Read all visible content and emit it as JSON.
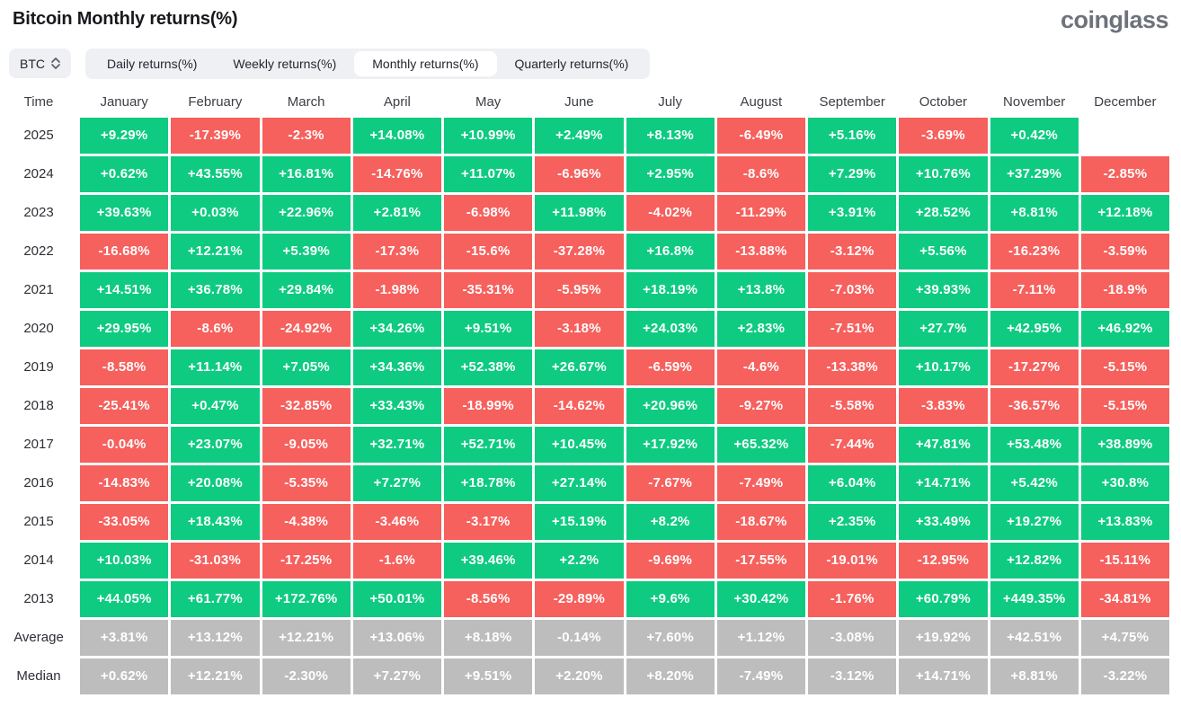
{
  "header": {
    "title": "Bitcoin Monthly returns(%)",
    "logo": "coinglass"
  },
  "controls": {
    "symbol": "BTC",
    "tabs": [
      {
        "label": "Daily returns(%)",
        "selected": false
      },
      {
        "label": "Weekly returns(%)",
        "selected": false
      },
      {
        "label": "Monthly returns(%)",
        "selected": true
      },
      {
        "label": "Quarterly returns(%)",
        "selected": false
      }
    ]
  },
  "colors": {
    "positive": "#0ecb81",
    "negative": "#f6605d",
    "summary": "#bdbdbd"
  },
  "table": {
    "time_header": "Time",
    "months": [
      "January",
      "February",
      "March",
      "April",
      "May",
      "June",
      "July",
      "August",
      "September",
      "October",
      "November",
      "December"
    ],
    "rows": [
      {
        "label": "2025",
        "type": "year",
        "values": [
          "+9.29%",
          "-17.39%",
          "-2.3%",
          "+14.08%",
          "+10.99%",
          "+2.49%",
          "+8.13%",
          "-6.49%",
          "+5.16%",
          "-3.69%",
          "+0.42%",
          null
        ]
      },
      {
        "label": "2024",
        "type": "year",
        "values": [
          "+0.62%",
          "+43.55%",
          "+16.81%",
          "-14.76%",
          "+11.07%",
          "-6.96%",
          "+2.95%",
          "-8.6%",
          "+7.29%",
          "+10.76%",
          "+37.29%",
          "-2.85%"
        ]
      },
      {
        "label": "2023",
        "type": "year",
        "values": [
          "+39.63%",
          "+0.03%",
          "+22.96%",
          "+2.81%",
          "-6.98%",
          "+11.98%",
          "-4.02%",
          "-11.29%",
          "+3.91%",
          "+28.52%",
          "+8.81%",
          "+12.18%"
        ]
      },
      {
        "label": "2022",
        "type": "year",
        "values": [
          "-16.68%",
          "+12.21%",
          "+5.39%",
          "-17.3%",
          "-15.6%",
          "-37.28%",
          "+16.8%",
          "-13.88%",
          "-3.12%",
          "+5.56%",
          "-16.23%",
          "-3.59%"
        ]
      },
      {
        "label": "2021",
        "type": "year",
        "values": [
          "+14.51%",
          "+36.78%",
          "+29.84%",
          "-1.98%",
          "-35.31%",
          "-5.95%",
          "+18.19%",
          "+13.8%",
          "-7.03%",
          "+39.93%",
          "-7.11%",
          "-18.9%"
        ]
      },
      {
        "label": "2020",
        "type": "year",
        "values": [
          "+29.95%",
          "-8.6%",
          "-24.92%",
          "+34.26%",
          "+9.51%",
          "-3.18%",
          "+24.03%",
          "+2.83%",
          "-7.51%",
          "+27.7%",
          "+42.95%",
          "+46.92%"
        ]
      },
      {
        "label": "2019",
        "type": "year",
        "values": [
          "-8.58%",
          "+11.14%",
          "+7.05%",
          "+34.36%",
          "+52.38%",
          "+26.67%",
          "-6.59%",
          "-4.6%",
          "-13.38%",
          "+10.17%",
          "-17.27%",
          "-5.15%"
        ]
      },
      {
        "label": "2018",
        "type": "year",
        "values": [
          "-25.41%",
          "+0.47%",
          "-32.85%",
          "+33.43%",
          "-18.99%",
          "-14.62%",
          "+20.96%",
          "-9.27%",
          "-5.58%",
          "-3.83%",
          "-36.57%",
          "-5.15%"
        ]
      },
      {
        "label": "2017",
        "type": "year",
        "values": [
          "-0.04%",
          "+23.07%",
          "-9.05%",
          "+32.71%",
          "+52.71%",
          "+10.45%",
          "+17.92%",
          "+65.32%",
          "-7.44%",
          "+47.81%",
          "+53.48%",
          "+38.89%"
        ]
      },
      {
        "label": "2016",
        "type": "year",
        "values": [
          "-14.83%",
          "+20.08%",
          "-5.35%",
          "+7.27%",
          "+18.78%",
          "+27.14%",
          "-7.67%",
          "-7.49%",
          "+6.04%",
          "+14.71%",
          "+5.42%",
          "+30.8%"
        ]
      },
      {
        "label": "2015",
        "type": "year",
        "values": [
          "-33.05%",
          "+18.43%",
          "-4.38%",
          "-3.46%",
          "-3.17%",
          "+15.19%",
          "+8.2%",
          "-18.67%",
          "+2.35%",
          "+33.49%",
          "+19.27%",
          "+13.83%"
        ]
      },
      {
        "label": "2014",
        "type": "year",
        "values": [
          "+10.03%",
          "-31.03%",
          "-17.25%",
          "-1.6%",
          "+39.46%",
          "+2.2%",
          "-9.69%",
          "-17.55%",
          "-19.01%",
          "-12.95%",
          "+12.82%",
          "-15.11%"
        ]
      },
      {
        "label": "2013",
        "type": "year",
        "values": [
          "+44.05%",
          "+61.77%",
          "+172.76%",
          "+50.01%",
          "-8.56%",
          "-29.89%",
          "+9.6%",
          "+30.42%",
          "-1.76%",
          "+60.79%",
          "+449.35%",
          "-34.81%"
        ]
      },
      {
        "label": "Average",
        "type": "summary",
        "values": [
          "+3.81%",
          "+13.12%",
          "+12.21%",
          "+13.06%",
          "+8.18%",
          "-0.14%",
          "+7.60%",
          "+1.12%",
          "-3.08%",
          "+19.92%",
          "+42.51%",
          "+4.75%"
        ]
      },
      {
        "label": "Median",
        "type": "summary",
        "values": [
          "+0.62%",
          "+12.21%",
          "-2.30%",
          "+7.27%",
          "+9.51%",
          "+2.20%",
          "+8.20%",
          "-7.49%",
          "-3.12%",
          "+14.71%",
          "+8.81%",
          "-3.22%"
        ]
      }
    ]
  }
}
